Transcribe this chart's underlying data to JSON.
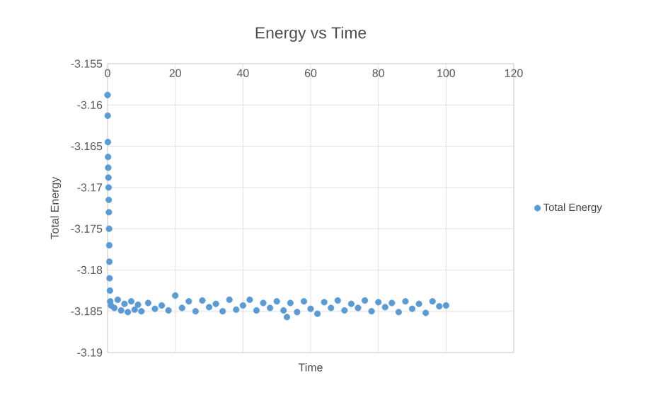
{
  "chart_data": {
    "type": "scatter",
    "title": "Energy vs Time",
    "xlabel": "Time",
    "ylabel": "Total Energy",
    "xlim": [
      0,
      120
    ],
    "xticks": [
      0,
      20,
      40,
      60,
      80,
      100,
      120
    ],
    "ylim": [
      -3.19,
      -3.155
    ],
    "yticks": [
      -3.19,
      -3.185,
      -3.18,
      -3.175,
      -3.17,
      -3.165,
      -3.16,
      -3.155
    ],
    "grid": true,
    "legend": "right",
    "marker": "circle",
    "series": [
      {
        "name": "Total Energy",
        "color": "#5b9bd5",
        "x": [
          0,
          0.05,
          0.1,
          0.15,
          0.2,
          0.25,
          0.3,
          0.35,
          0.4,
          0.45,
          0.5,
          0.55,
          0.6,
          0.7,
          0.8,
          1,
          2,
          3,
          4,
          5,
          6,
          7,
          8,
          9,
          10,
          12,
          14,
          16,
          18,
          20,
          22,
          24,
          26,
          28,
          30,
          32,
          34,
          36,
          38,
          40,
          42,
          44,
          46,
          48,
          50,
          52,
          53,
          54,
          56,
          58,
          60,
          62,
          64,
          66,
          68,
          70,
          72,
          74,
          76,
          78,
          80,
          82,
          84,
          86,
          88,
          90,
          92,
          94,
          96,
          98,
          100
        ],
        "values": [
          -3.1588,
          -3.1613,
          -3.1645,
          -3.1663,
          -3.1676,
          -3.1688,
          -3.17,
          -3.1715,
          -3.173,
          -3.175,
          -3.177,
          -3.179,
          -3.181,
          -3.1825,
          -3.1838,
          -3.1843,
          -3.1846,
          -3.1836,
          -3.1849,
          -3.1841,
          -3.1851,
          -3.1838,
          -3.1848,
          -3.1842,
          -3.185,
          -3.184,
          -3.1847,
          -3.1843,
          -3.1849,
          -3.1831,
          -3.1846,
          -3.1838,
          -3.185,
          -3.1837,
          -3.1845,
          -3.1841,
          -3.185,
          -3.1836,
          -3.1848,
          -3.1843,
          -3.1836,
          -3.1849,
          -3.184,
          -3.1846,
          -3.1838,
          -3.1849,
          -3.1857,
          -3.184,
          -3.1851,
          -3.1838,
          -3.1847,
          -3.1853,
          -3.1839,
          -3.1846,
          -3.1837,
          -3.1849,
          -3.1841,
          -3.1846,
          -3.1837,
          -3.185,
          -3.1839,
          -3.1845,
          -3.184,
          -3.1851,
          -3.1838,
          -3.1847,
          -3.1841,
          -3.1852,
          -3.1838,
          -3.1844,
          -3.1843
        ]
      }
    ]
  }
}
